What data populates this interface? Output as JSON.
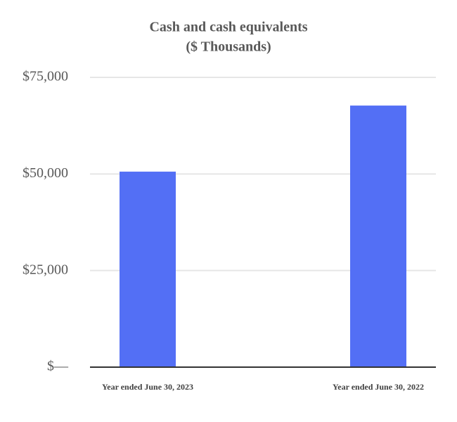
{
  "chart_data": {
    "type": "bar",
    "title": "Cash and cash equivalents",
    "subtitle": "($ Thousands)",
    "categories": [
      "Year ended June 30, 2023",
      "Year ended June 30, 2022"
    ],
    "values": [
      50600,
      67700
    ],
    "color": "#536ff5",
    "ylim": [
      0,
      75000
    ],
    "yticks": [
      {
        "value": 0,
        "label": "$—"
      },
      {
        "value": 25000,
        "label": "$25,000"
      },
      {
        "value": 50000,
        "label": "$50,000"
      },
      {
        "value": 75000,
        "label": "$75,000"
      }
    ],
    "grid": true
  }
}
